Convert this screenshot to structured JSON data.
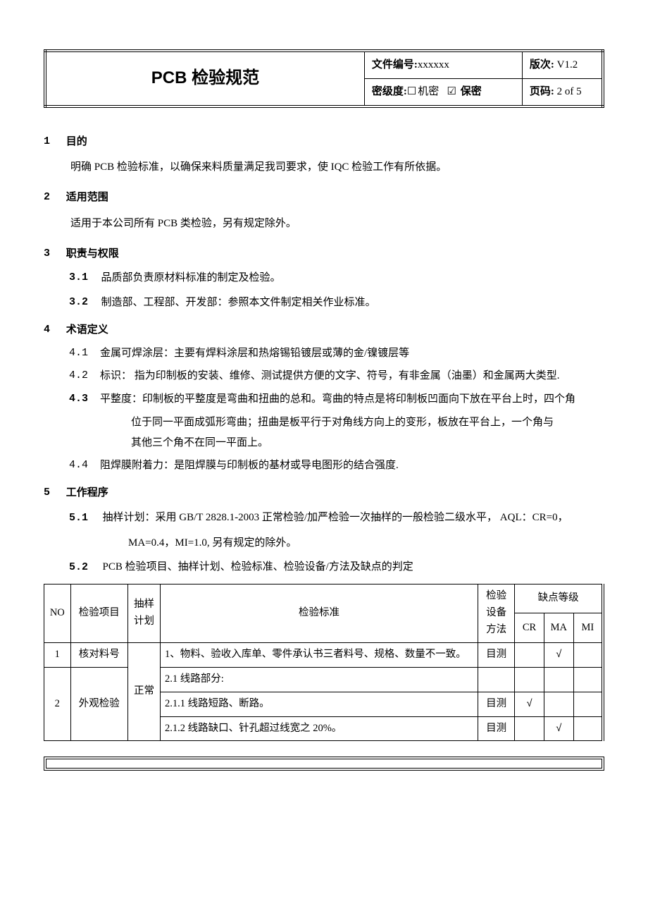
{
  "header": {
    "title": "PCB 检验规范",
    "doc_no_label": "文件编号:",
    "doc_no": "xxxxxx",
    "version_label": "版次:",
    "version": "V1.2",
    "secret_label": "密级度:",
    "secret_opt_unchecked": "机密",
    "secret_opt_checked": "保密",
    "page_label": "页码:",
    "page": "2 of 5",
    "checkbox_empty": "☐",
    "checkbox_checked": "☑"
  },
  "s1": {
    "num": "1",
    "title": "目的",
    "body": "明确 PCB 检验标准，以确保来料质量满足我司要求，使 IQC 检验工作有所依据。"
  },
  "s2": {
    "num": "2",
    "title": "适用范围",
    "body": "适用于本公司所有 PCB 类检验，另有规定除外。"
  },
  "s3": {
    "num": "3",
    "title": "职责与权限",
    "i1_num": "3.1",
    "i1_text": "品质部负责原材料标准的制定及检验。",
    "i2_num": "3.2",
    "i2_text": "制造部、工程部、开发部：参照本文件制定相关作业标准。"
  },
  "s4": {
    "num": "4",
    "title": "术语定义",
    "d1_num": "4.1",
    "d1_text": "金属可焊涂层：主要有焊料涂层和热熔锡铅镀层或薄的金/镍镀层等",
    "d2_num": "4.2",
    "d2_text": "标识：  指为印制板的安装、维修、测试提供方便的文字、符号，有非金属（油墨）和金属两大类型.",
    "d3_num": "4.3",
    "d3_text_a": "平整度：印制板的平整度是弯曲和扭曲的总和。弯曲的特点是将印制板凹面向下放在平台上时，四个角",
    "d3_text_b": "位于同一平面成弧形弯曲；扭曲是板平行于对角线方向上的变形，板放在平台上，一个角与",
    "d3_text_c": "其他三个角不在同一平面上。",
    "d4_num": "4.4",
    "d4_text": "阻焊膜附着力：是阻焊膜与印制板的基材或导电图形的结合强度."
  },
  "s5": {
    "num": "5",
    "title": "工作程序",
    "i1_num": "5.1",
    "i1_text_a": "抽样计划：采用 GB/T 2828.1-2003 正常检验/加严检验一次抽样的一般检验二级水平，  AQL：CR=0，",
    "i1_text_b": "MA=0.4，MI=1.0, 另有规定的除外。",
    "i2_num": "5.2",
    "i2_text": "PCB 检验项目、抽样计划、检验标准、检验设备/方法及缺点的判定"
  },
  "table": {
    "h_no": "NO",
    "h_item": "检验项目",
    "h_plan": "抽样计划",
    "h_std": "检验标准",
    "h_equip": "检验设备方法",
    "h_defect": "缺点等级",
    "h_cr": "CR",
    "h_ma": "MA",
    "h_mi": "MI",
    "r1_no": "1",
    "r1_item": "核对料号",
    "r1_std": "1、物料、验收入库单、零件承认书三者料号、规格、数量不一致。",
    "r1_equip": "目测",
    "r1_ma": "√",
    "r2_no": "2",
    "r2_item": "外观检验",
    "r2_plan": "正常",
    "r2a_std": "2.1 线路部分:",
    "r2b_std": "2.1.1 线路短路、断路。",
    "r2b_equip": "目测",
    "r2b_cr": "√",
    "r2c_std": "2.1.2 线路缺口、针孔超过线宽之 20%。",
    "r2c_equip": "目测",
    "r2c_ma": "√"
  }
}
